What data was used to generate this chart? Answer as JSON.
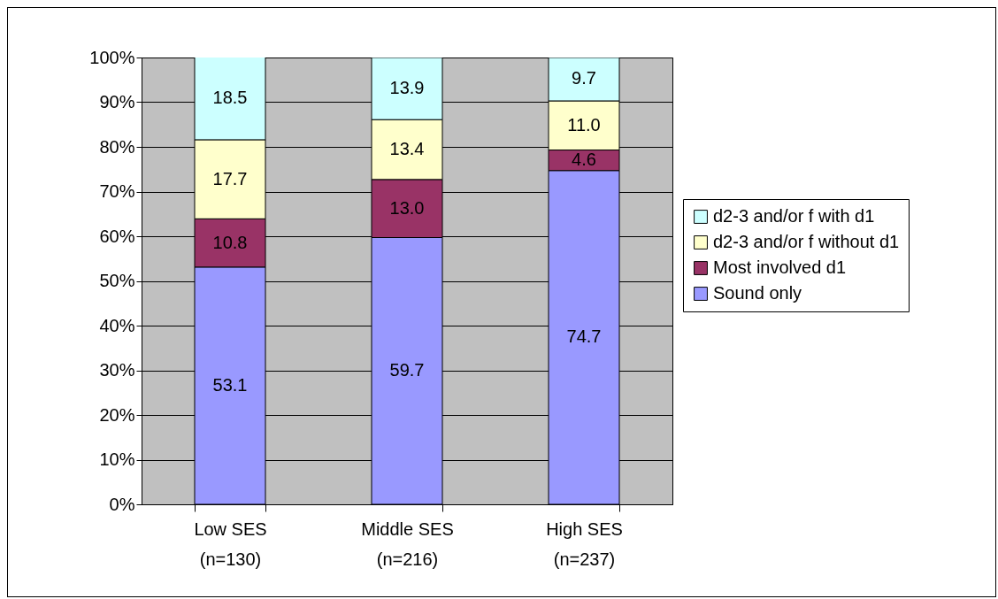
{
  "chart_data": {
    "type": "bar",
    "stacked": true,
    "legend": "right",
    "grid": "y",
    "categories": [
      "Low SES\n(n=130)",
      "Middle SES\n(n=216)",
      "High SES\n(n=237)"
    ],
    "series": [
      {
        "name": "Sound only",
        "color": "#9999ff",
        "values": [
          53.1,
          59.7,
          74.7
        ],
        "value_labels": [
          "53.1",
          "59.7",
          "74.7"
        ]
      },
      {
        "name": "Most involved d1",
        "color": "#993366",
        "values": [
          10.8,
          13.0,
          4.6
        ],
        "value_labels": [
          "10.8",
          "13.0",
          "4.6"
        ]
      },
      {
        "name": "d2-3 and/or f without d1",
        "color": "#ffffcc",
        "values": [
          17.7,
          13.4,
          11.0
        ],
        "value_labels": [
          "17.7",
          "13.4",
          "11.0"
        ]
      },
      {
        "name": "d2-3 and/or f with d1",
        "color": "#ccffff",
        "values": [
          18.5,
          13.9,
          9.7
        ],
        "value_labels": [
          "18.5",
          "13.9",
          "9.7"
        ]
      }
    ],
    "ylim": [
      0,
      100
    ],
    "yticks": [
      {
        "value": 0,
        "label": "0%"
      },
      {
        "value": 10,
        "label": "10%"
      },
      {
        "value": 20,
        "label": "20%"
      },
      {
        "value": 30,
        "label": "30%"
      },
      {
        "value": 40,
        "label": "40%"
      },
      {
        "value": 50,
        "label": "50%"
      },
      {
        "value": 60,
        "label": "60%"
      },
      {
        "value": 70,
        "label": "70%"
      },
      {
        "value": 80,
        "label": "80%"
      },
      {
        "value": 90,
        "label": "90%"
      },
      {
        "value": 100,
        "label": "100%"
      }
    ]
  }
}
